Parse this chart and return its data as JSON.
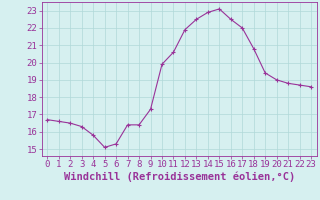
{
  "x": [
    0,
    1,
    2,
    3,
    4,
    5,
    6,
    7,
    8,
    9,
    10,
    11,
    12,
    13,
    14,
    15,
    16,
    17,
    18,
    19,
    20,
    21,
    22,
    23
  ],
  "y": [
    16.7,
    16.6,
    16.5,
    16.3,
    15.8,
    15.1,
    15.3,
    16.4,
    16.4,
    17.3,
    19.9,
    20.6,
    21.9,
    22.5,
    22.9,
    23.1,
    22.5,
    22.0,
    20.8,
    19.4,
    19.0,
    18.8,
    18.7,
    18.6
  ],
  "line_color": "#993399",
  "marker": "P",
  "marker_size": 2.5,
  "bg_color": "#d6f0f0",
  "grid_color": "#b0d8d8",
  "xlabel": "Windchill (Refroidissement éolien,°C)",
  "xlabel_fontsize": 7.5,
  "yticks": [
    15,
    16,
    17,
    18,
    19,
    20,
    21,
    22,
    23
  ],
  "xticks": [
    0,
    1,
    2,
    3,
    4,
    5,
    6,
    7,
    8,
    9,
    10,
    11,
    12,
    13,
    14,
    15,
    16,
    17,
    18,
    19,
    20,
    21,
    22,
    23
  ],
  "xlim": [
    -0.5,
    23.5
  ],
  "ylim": [
    14.6,
    23.5
  ],
  "tick_fontsize": 6.5
}
